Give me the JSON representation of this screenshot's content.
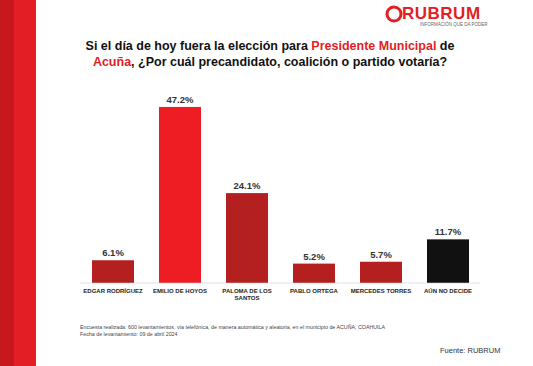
{
  "chart_data": {
    "type": "bar",
    "title": "Si el día de hoy fuera la elección para Presidente Municipal de Acuña, ¿Por cuál precandidato, coalición o partido votaría?",
    "title_highlights": [
      "Presidente Municipal",
      "Acuña"
    ],
    "logo": "RUBRUM",
    "logo_tagline": "INFORMACIÓN QUE DA PODER",
    "categories": [
      "EDGAR RODRÍGUEZ",
      "EMILIO DE HOYOS",
      "PALOMA DE LOS SANTOS",
      "PABLO ORTEGA",
      "MERCEDES TORRES",
      "AÚN NO DECIDE"
    ],
    "values": [
      6.1,
      47.2,
      24.1,
      5.2,
      5.7,
      11.7
    ],
    "value_labels": [
      "6.1%",
      "47.2%",
      "24.1%",
      "5.2%",
      "5.7%",
      "11.7%"
    ],
    "colors": [
      "#b3201f",
      "#ee1d23",
      "#b3201f",
      "#b3201f",
      "#b3201f",
      "#111111"
    ],
    "ylim": [
      0,
      50
    ],
    "data_labels": true,
    "tick_labels": "x",
    "grid": false,
    "note": [
      "Encuesta realizada: 600 levantamientos, vía telefónica, de manera automática y aleatoria, en el municipio de ACUÑA, COAHUILA",
      "Fecha de levantamiento: 09 de abril 2024"
    ],
    "source": "Fuente: RUBRUM"
  }
}
